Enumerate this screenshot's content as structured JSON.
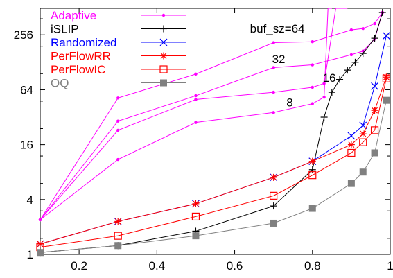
{
  "chart_data": {
    "type": "line",
    "title": "",
    "xlabel": "",
    "ylabel": "",
    "xlim": [
      0.1,
      1.0
    ],
    "ylim": [
      1,
      500
    ],
    "yscale": "log2",
    "grid": false,
    "legend_position": "top-left",
    "x_ticks": [
      0.2,
      0.4,
      0.6,
      0.8,
      1
    ],
    "x_tick_labels": [
      "0.2",
      "0.4",
      "0.6",
      "0.8",
      "1"
    ],
    "y_ticks": [
      1,
      4,
      16,
      64,
      256
    ],
    "y_tick_labels": [
      "1",
      "4",
      "16",
      "64",
      "256"
    ],
    "series": [
      {
        "name": "Adaptive",
        "color": "#ff00ff",
        "marker": "dot",
        "curves": [
          {
            "x": [
              0.1,
              0.3,
              0.5,
              0.7,
              0.8,
              0.9,
              0.93,
              0.96,
              0.98
            ],
            "y": [
              2.4,
              52,
              95,
              210,
              215,
              290,
              300,
              340,
              450
            ]
          },
          {
            "x": [
              0.1,
              0.3,
              0.5,
              0.7,
              0.8,
              0.9,
              0.93,
              0.96,
              0.98
            ],
            "y": [
              2.4,
              29,
              55,
              112,
              120,
              155,
              170,
              230,
              450
            ]
          },
          {
            "x": [
              0.1,
              0.3,
              0.5,
              0.7,
              0.8,
              0.83,
              0.86,
              0.89
            ],
            "y": [
              2.4,
              23,
              50,
              60,
              68,
              75,
              500,
              500
            ]
          },
          {
            "x": [
              0.1,
              0.3,
              0.5,
              0.7,
              0.8,
              0.83,
              0.84,
              0.85
            ],
            "y": [
              2.4,
              11,
              28,
              36,
              45,
              53,
              500,
              500
            ]
          }
        ]
      },
      {
        "name": "iSLIP",
        "color": "#000000",
        "marker": "plus",
        "x": [
          0.1,
          0.3,
          0.5,
          0.7,
          0.8,
          0.83,
          0.85,
          0.87,
          0.89,
          0.91,
          0.93,
          0.96,
          0.98
        ],
        "y": [
          1.05,
          1.25,
          1.8,
          3.4,
          8.5,
          32,
          60,
          83,
          105,
          128,
          160,
          235,
          450
        ]
      },
      {
        "name": "Randomized",
        "color": "#0000ff",
        "marker": "x",
        "x": [
          0.1,
          0.3,
          0.5,
          0.7,
          0.8,
          0.9,
          0.93,
          0.96,
          0.99
        ],
        "y": [
          1.3,
          2.3,
          3.6,
          7.0,
          10.5,
          20,
          26,
          70,
          250
        ]
      },
      {
        "name": "PerFlowRR",
        "color": "#ff0000",
        "marker": "star",
        "x": [
          0.1,
          0.3,
          0.5,
          0.7,
          0.8,
          0.9,
          0.93,
          0.96,
          0.99
        ],
        "y": [
          1.3,
          2.3,
          3.6,
          7.0,
          10.5,
          16,
          21,
          38,
          88
        ]
      },
      {
        "name": "PerFlowIC",
        "color": "#ff0000",
        "marker": "square-open",
        "x": [
          0.1,
          0.3,
          0.5,
          0.7,
          0.8,
          0.9,
          0.93,
          0.96,
          0.99
        ],
        "y": [
          1.2,
          1.6,
          2.6,
          4.4,
          7.4,
          13,
          17,
          23,
          85
        ]
      },
      {
        "name": "OQ",
        "color": "#808080",
        "marker": "square-filled",
        "x": [
          0.1,
          0.3,
          0.5,
          0.7,
          0.8,
          0.9,
          0.93,
          0.96,
          0.99
        ],
        "y": [
          1.05,
          1.25,
          1.6,
          2.2,
          3.2,
          6.0,
          8.0,
          13,
          49
        ]
      }
    ],
    "annotations": [
      {
        "text": "buf_sz=64",
        "x": 0.78,
        "y": 270
      },
      {
        "text": "32",
        "x": 0.73,
        "y": 125
      },
      {
        "text": "16",
        "x": 0.86,
        "y": 78
      },
      {
        "text": "8",
        "x": 0.75,
        "y": 42
      }
    ]
  }
}
